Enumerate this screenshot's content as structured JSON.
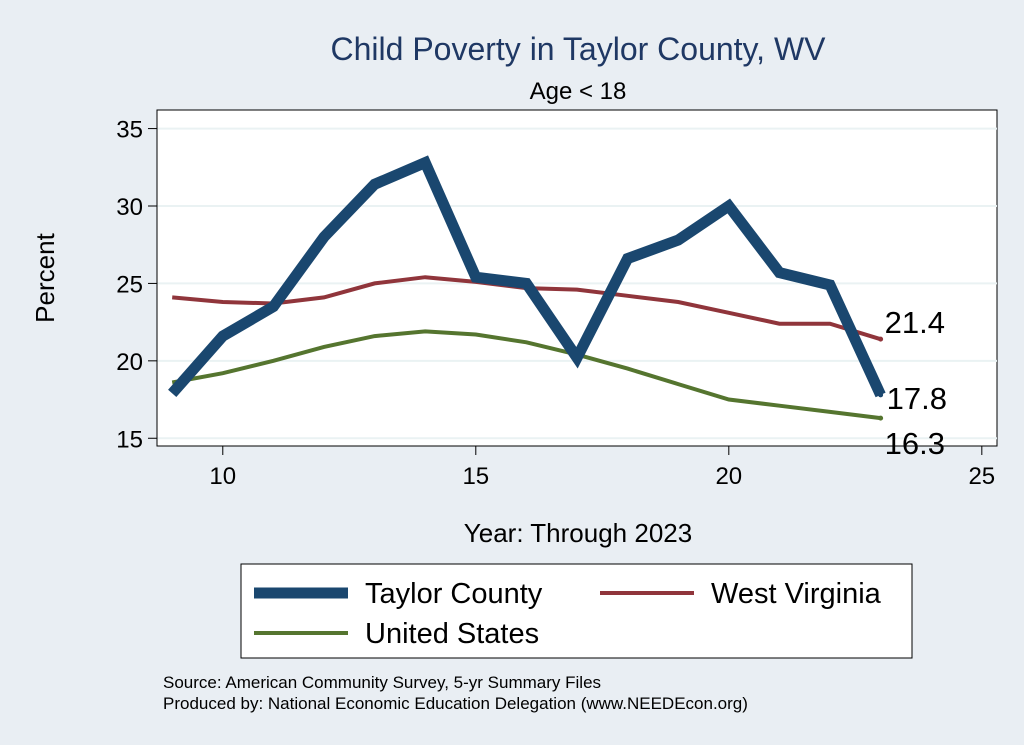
{
  "chart_data": {
    "type": "line",
    "title": "Child Poverty in Taylor County, WV",
    "subtitle": "Age < 18",
    "xlabel": "Year: Through 2023",
    "ylabel": "Percent",
    "xlim": [
      8.7,
      25.3
    ],
    "ylim": [
      14.5,
      36.2
    ],
    "xticks": [
      10,
      15,
      20,
      25
    ],
    "yticks": [
      15,
      20,
      25,
      30,
      35
    ],
    "grid": true,
    "legend_position": "bottom",
    "x": [
      9,
      10,
      11,
      12,
      13,
      14,
      15,
      16,
      17,
      18,
      19,
      20,
      21,
      22,
      23
    ],
    "series": [
      {
        "name": "Taylor County",
        "color": "#1a476f",
        "values": [
          17.9,
          21.6,
          23.5,
          28.0,
          31.4,
          32.8,
          25.4,
          25.0,
          20.2,
          26.6,
          27.8,
          30.0,
          25.7,
          24.9,
          17.8
        ],
        "end_label": "17.8"
      },
      {
        "name": "West Virginia",
        "color": "#90353b",
        "values": [
          24.1,
          23.8,
          23.7,
          24.1,
          25.0,
          25.4,
          25.1,
          24.7,
          24.6,
          24.2,
          23.8,
          23.1,
          22.4,
          22.4,
          21.4
        ],
        "end_label": "21.4"
      },
      {
        "name": "United States",
        "color": "#55752f",
        "values": [
          18.6,
          19.2,
          20.0,
          20.9,
          21.6,
          21.9,
          21.7,
          21.2,
          20.4,
          19.5,
          18.5,
          17.5,
          17.1,
          16.7,
          16.3
        ],
        "end_label": "16.3"
      }
    ],
    "source_lines": [
      "Source: American Community Survey, 5-yr Summary Files",
      "Produced by: National Economic Education Delegation (www.NEEDEcon.org)"
    ]
  }
}
